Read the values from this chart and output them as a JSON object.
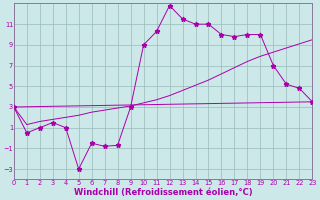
{
  "xlabel": "Windchill (Refroidissement éolien,°C)",
  "bg_color": "#cce8e8",
  "line_color": "#aa00aa",
  "grid_color": "#99bbbb",
  "spine_color": "#887799",
  "xlim": [
    0,
    23
  ],
  "ylim": [
    -4,
    13
  ],
  "xticks": [
    0,
    1,
    2,
    3,
    4,
    5,
    6,
    7,
    8,
    9,
    10,
    11,
    12,
    13,
    14,
    15,
    16,
    17,
    18,
    19,
    20,
    21,
    22,
    23
  ],
  "yticks": [
    -3,
    -1,
    1,
    3,
    5,
    7,
    9,
    11
  ],
  "series1_x": [
    0,
    1,
    2,
    3,
    4,
    5,
    6,
    7,
    8,
    9,
    10,
    11,
    12,
    13,
    14,
    15,
    16,
    17,
    18,
    19,
    20,
    21,
    22,
    23
  ],
  "series1_y": [
    3,
    0.5,
    1,
    1.5,
    1,
    -3,
    -0.5,
    -0.8,
    -0.7,
    3,
    9,
    10.3,
    12.8,
    11.5,
    11,
    11,
    10,
    9.8,
    10,
    10,
    7,
    5.2,
    4.8,
    3.5
  ],
  "series2_x": [
    0,
    23
  ],
  "series2_y": [
    3,
    3.5
  ],
  "series3_x": [
    0,
    1,
    2,
    3,
    4,
    5,
    6,
    7,
    8,
    9,
    10,
    11,
    12,
    13,
    14,
    15,
    16,
    17,
    18,
    19,
    20,
    21,
    22,
    23
  ],
  "series3_y": [
    3,
    1.3,
    1.6,
    1.8,
    2.0,
    2.2,
    2.5,
    2.7,
    2.9,
    3.1,
    3.4,
    3.7,
    4.1,
    4.6,
    5.1,
    5.6,
    6.2,
    6.8,
    7.4,
    7.9,
    8.3,
    8.7,
    9.1,
    9.5
  ],
  "tick_fontsize": 4.8,
  "label_fontsize": 6.0
}
